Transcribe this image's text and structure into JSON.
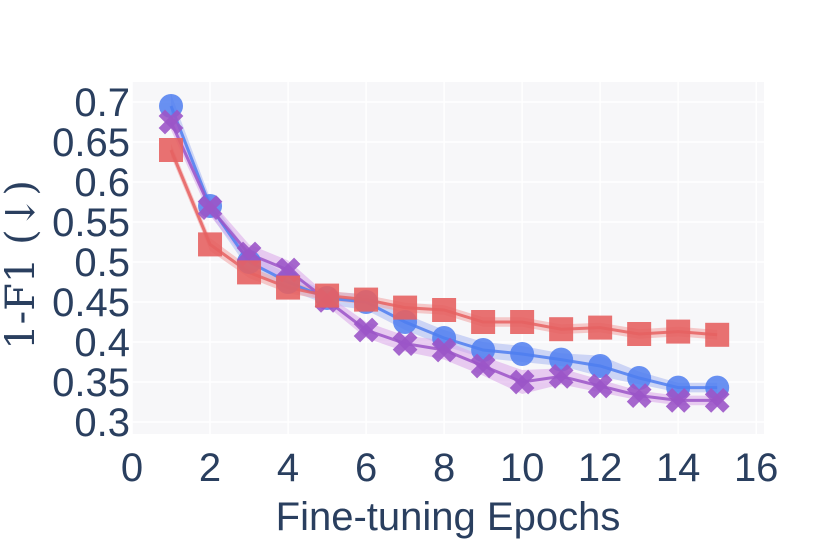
{
  "chart_data": {
    "type": "line",
    "xlabel": "Fine-tuning Epochs",
    "ylabel": "1-F1 (↓)",
    "xlim": [
      0,
      16.2
    ],
    "ylim": [
      0.285,
      0.725
    ],
    "x_ticks": [
      "0",
      "2",
      "4",
      "6",
      "8",
      "10",
      "12",
      "14",
      "16"
    ],
    "x_tick_values": [
      0,
      2,
      4,
      6,
      8,
      10,
      12,
      14,
      16
    ],
    "y_ticks": [
      "0.3",
      "0.35",
      "0.4",
      "0.45",
      "0.5",
      "0.55",
      "0.6",
      "0.65",
      "0.7"
    ],
    "y_tick_values": [
      0.3,
      0.35,
      0.4,
      0.45,
      0.5,
      0.55,
      0.6,
      0.65,
      0.7
    ],
    "grid": true,
    "legend": "none",
    "x": [
      1,
      2,
      3,
      4,
      5,
      6,
      7,
      8,
      9,
      10,
      11,
      12,
      13,
      14,
      15
    ],
    "series": [
      {
        "marker": "circle",
        "color": "#4f7ef0",
        "band_color": "#a9b8f2",
        "values": [
          0.695,
          0.57,
          0.5,
          0.475,
          0.455,
          0.45,
          0.425,
          0.405,
          0.39,
          0.385,
          0.378,
          0.37,
          0.355,
          0.343,
          0.343
        ],
        "lower": [
          0.68,
          0.56,
          0.49,
          0.465,
          0.447,
          0.44,
          0.415,
          0.395,
          0.38,
          0.375,
          0.37,
          0.357,
          0.347,
          0.337,
          0.337
        ],
        "upper": [
          0.71,
          0.58,
          0.51,
          0.485,
          0.463,
          0.46,
          0.435,
          0.415,
          0.4,
          0.395,
          0.386,
          0.383,
          0.363,
          0.349,
          0.349
        ]
      },
      {
        "marker": "x",
        "color": "#9b55c8",
        "band_color": "#dba6ea",
        "values": [
          0.675,
          0.568,
          0.51,
          0.49,
          0.452,
          0.415,
          0.398,
          0.39,
          0.37,
          0.35,
          0.357,
          0.345,
          0.333,
          0.327,
          0.327
        ],
        "lower": [
          0.665,
          0.558,
          0.498,
          0.478,
          0.445,
          0.405,
          0.388,
          0.378,
          0.358,
          0.335,
          0.347,
          0.337,
          0.327,
          0.321,
          0.321
        ],
        "upper": [
          0.685,
          0.578,
          0.522,
          0.502,
          0.459,
          0.425,
          0.408,
          0.402,
          0.382,
          0.365,
          0.367,
          0.353,
          0.339,
          0.333,
          0.333
        ]
      },
      {
        "marker": "square",
        "color": "#e66262",
        "band_color": "#f2a3a3",
        "values": [
          0.64,
          0.522,
          0.487,
          0.468,
          0.458,
          0.453,
          0.443,
          0.44,
          0.425,
          0.425,
          0.416,
          0.418,
          0.41,
          0.413,
          0.409
        ],
        "lower": [
          0.632,
          0.514,
          0.48,
          0.461,
          0.452,
          0.447,
          0.437,
          0.434,
          0.419,
          0.419,
          0.41,
          0.412,
          0.404,
          0.407,
          0.403
        ],
        "upper": [
          0.648,
          0.53,
          0.494,
          0.475,
          0.464,
          0.459,
          0.449,
          0.446,
          0.431,
          0.431,
          0.422,
          0.424,
          0.416,
          0.419,
          0.415
        ]
      }
    ]
  }
}
